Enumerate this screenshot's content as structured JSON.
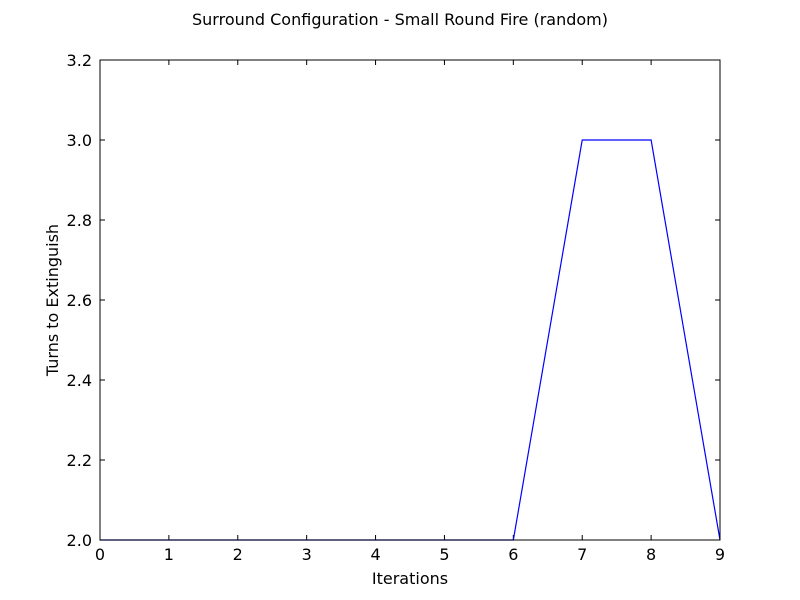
{
  "chart_data": {
    "type": "line",
    "title": "Surround Configuration - Small Round Fire (random)",
    "xlabel": "Iterations",
    "ylabel": "Turns to Extinguish",
    "xlim": [
      0,
      9
    ],
    "ylim": [
      2.0,
      3.2
    ],
    "xticks": [
      "0",
      "1",
      "2",
      "3",
      "4",
      "5",
      "6",
      "7",
      "8",
      "9"
    ],
    "yticks": [
      "2.0",
      "2.2",
      "2.4",
      "2.6",
      "2.8",
      "3.0",
      "3.2"
    ],
    "grid": false,
    "series": [
      {
        "color": "#0000ff",
        "x": [
          0,
          1,
          2,
          3,
          4,
          5,
          6,
          7,
          8,
          9
        ],
        "y": [
          2,
          2,
          2,
          2,
          2,
          2,
          2,
          3,
          3,
          2
        ]
      }
    ]
  }
}
